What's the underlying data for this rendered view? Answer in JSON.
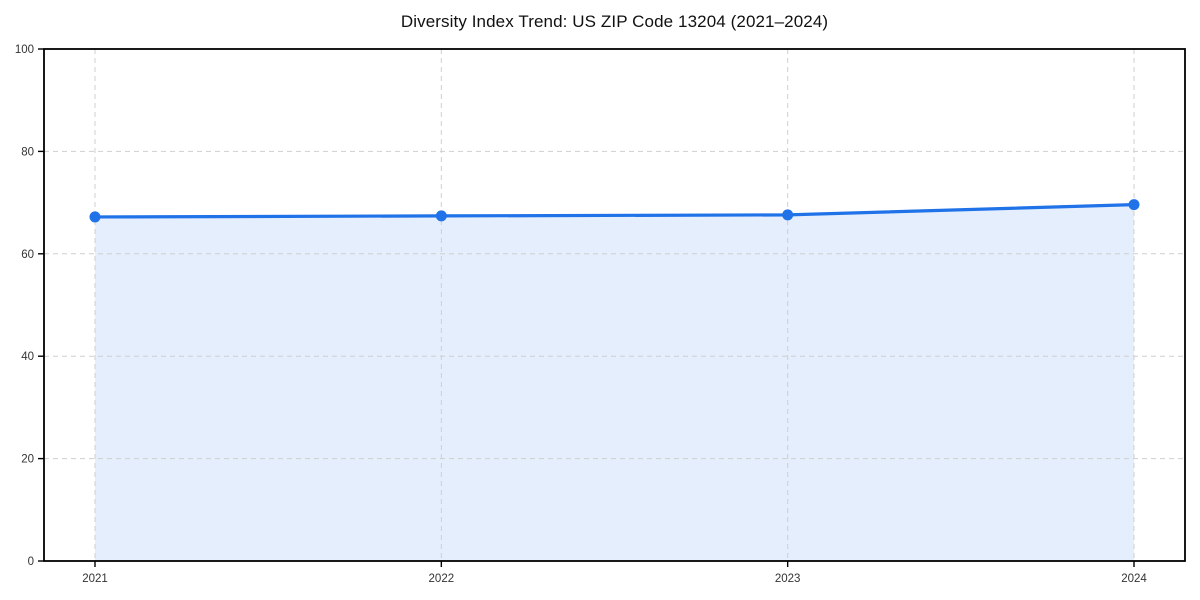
{
  "page": {
    "background": "#ffffff"
  },
  "chart_data": {
    "type": "area",
    "title": "Diversity Index Trend: US ZIP Code 13204 (2021–2024)",
    "categories": [
      "2021",
      "2022",
      "2023",
      "2024"
    ],
    "series": [
      {
        "name": "Diversity Index",
        "values": [
          67.2,
          67.4,
          67.6,
          69.6
        ]
      }
    ],
    "xlabel": "",
    "ylabel": "",
    "ylim": [
      0,
      100
    ],
    "yticks": [
      0,
      20,
      40,
      60,
      80,
      100
    ],
    "grid": "dashed both axes",
    "legend": "none",
    "marker": "circle",
    "colors": {
      "line": "#1f72e8",
      "marker": "#1f72e8",
      "fill": "rgba(31,114,232,0.12)",
      "grid": "#cfcfcf",
      "axis": "#000000",
      "tick_label": "#333333",
      "title": "#111111",
      "background": "#ffffff"
    }
  }
}
